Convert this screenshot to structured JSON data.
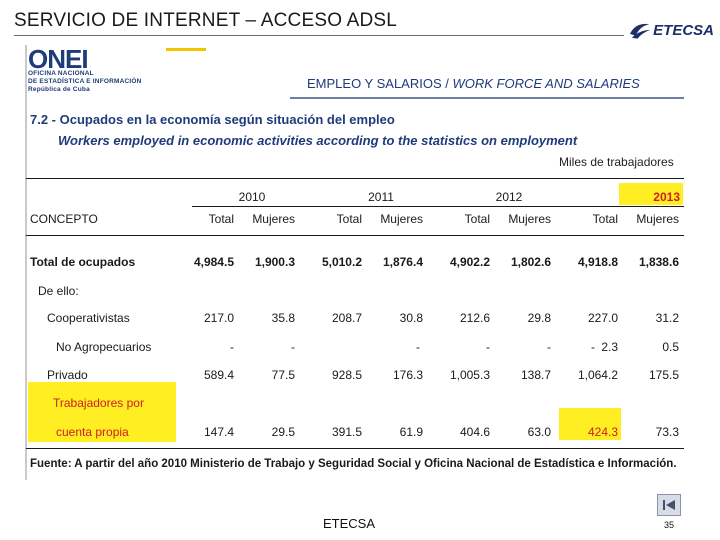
{
  "slide": {
    "title": "SERVICIO DE INTERNET – ACCESO ADSL",
    "brand": "ETECSA",
    "footer": "ETECSA",
    "page_number": "35"
  },
  "document": {
    "org_logo_word": "ONEI",
    "org_lines": [
      "OFICINA NACIONAL",
      "DE ESTADÍSTICA E INFORMACIÓN",
      "República de Cuba"
    ],
    "section_es": "EMPLEO Y SALARIOS / ",
    "section_en": "WORK FORCE AND SALARIES",
    "table_title": "7.2 - Ocupados en la economía según situación del empleo",
    "table_subtitle": "Workers employed in economic activities according to the statistics on employment",
    "units": "Miles de trabajadores",
    "concept_header": "CONCEPTO",
    "years": [
      "2010",
      "2011",
      "2012",
      "2013"
    ],
    "col_total": "Total",
    "col_women": "Mujeres",
    "rows": {
      "total_ocupados": {
        "label": "Total de ocupados",
        "values": [
          "4,984.5",
          "1,900.3",
          "5,010.2",
          "1,876.4",
          "4,902.2",
          "1,802.6",
          "4,918.8",
          "1,838.6"
        ]
      },
      "de_ello": {
        "label": "De ello:"
      },
      "cooperativistas": {
        "label": "Cooperativistas",
        "values": [
          "217.0",
          "35.8",
          "208.7",
          "30.8",
          "212.6",
          "29.8",
          "227.0",
          "31.2"
        ]
      },
      "no_agropecuarios": {
        "label": "No  Agropecuarios",
        "values": [
          "-",
          "-",
          "-",
          "-",
          "-",
          "-",
          "2.3",
          "0.5"
        ]
      },
      "privado": {
        "label": "Privado",
        "values": [
          "589.4",
          "77.5",
          "928.5",
          "176.3",
          "1,005.3",
          "138.7",
          "1,064.2",
          "175.5"
        ]
      },
      "cuenta_propia": {
        "label_line1": "Trabajadores por",
        "label_line2": "cuenta propia",
        "values": [
          "147.4",
          "29.5",
          "391.5",
          "61.9",
          "404.6",
          "63.0",
          "424.3",
          "73.3"
        ]
      }
    },
    "source": "Fuente: A partir del año 2010 Ministerio de Trabajo y Seguridad Social y Oficina Nacional de Estadística e Información."
  },
  "colors": {
    "navy": "#1f3b7a",
    "highlight": "#ffee22",
    "red": "#cc1f1f"
  }
}
